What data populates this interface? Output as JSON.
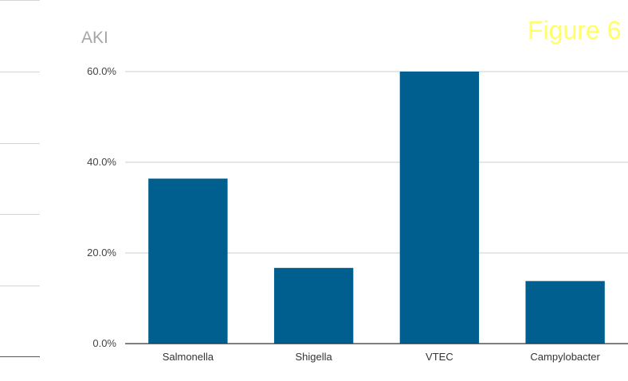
{
  "figure_label": "Figure 6",
  "chart_data": {
    "type": "bar",
    "title": "AKI",
    "categories": [
      "Salmonella",
      "Shigella",
      "VTEC",
      "Campylobacter"
    ],
    "values": [
      36.4,
      16.7,
      60.0,
      13.8
    ],
    "ylim": [
      0,
      60
    ],
    "yticks": [
      "0.0%",
      "20.0%",
      "40.0%",
      "60.0%"
    ],
    "ytick_values": [
      0,
      20,
      40,
      60
    ],
    "xlabel": "",
    "ylabel": "",
    "grid": true,
    "legend": "none",
    "bar_color": "#005f8f",
    "grid_color": "#cccccc",
    "axis_color": "#333333"
  }
}
